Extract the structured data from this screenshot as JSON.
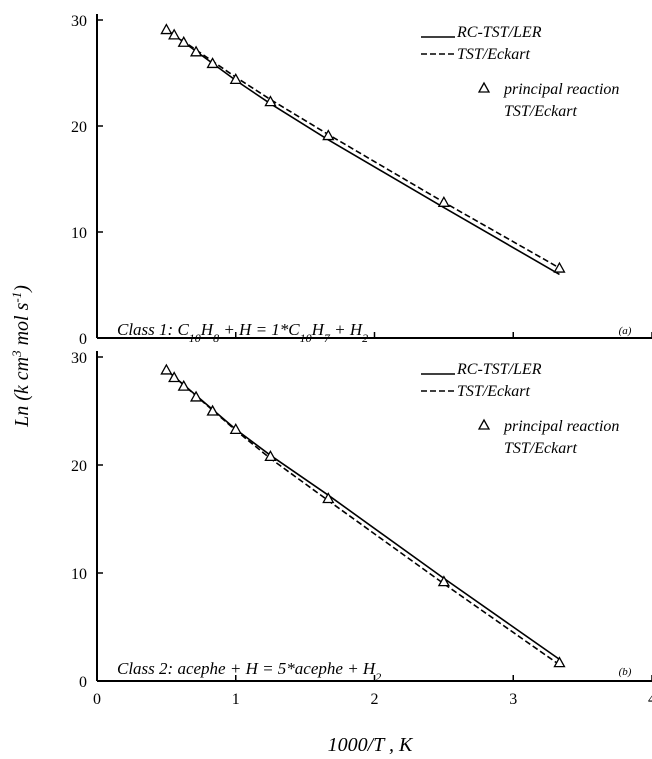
{
  "chart_data": [
    {
      "type": "line",
      "panel_label": "(a)",
      "title": "",
      "annotation_parts": [
        "Class 1: C",
        "10",
        "H",
        "8",
        " + H = 1*C",
        "10",
        "H",
        "7",
        " + H",
        "2"
      ],
      "xlabel": "1000/T , K",
      "ylabel_parts": [
        "Ln (k cm",
        "3",
        " mol s",
        "-1",
        ")"
      ],
      "xlim": [
        0,
        4
      ],
      "ylim": [
        0,
        30
      ],
      "xticks": [
        "0",
        "1",
        "2",
        "3",
        "4"
      ],
      "yticks": [
        "0",
        "10",
        "20",
        "30"
      ],
      "legend": {
        "position": "top-right"
      },
      "series": [
        {
          "name": "RC-TST/LER",
          "style": "solid",
          "x": [
            0.5,
            1.0,
            1.25,
            1.667,
            2.5,
            3.333
          ],
          "y": [
            29.1,
            24.3,
            22.1,
            18.7,
            12.3,
            6.0
          ]
        },
        {
          "name": "TST/Eckart",
          "style": "dashed",
          "x": [
            0.5,
            1.0,
            1.25,
            1.667,
            2.5,
            3.333
          ],
          "y": [
            29.1,
            24.6,
            22.5,
            19.2,
            12.8,
            6.6
          ]
        },
        {
          "name_lines": [
            "principal reaction",
            "TST/Eckart"
          ],
          "style": "triangle",
          "x": [
            0.5,
            0.556,
            0.625,
            0.714,
            0.833,
            1.0,
            1.25,
            1.667,
            2.5,
            3.333
          ],
          "y": [
            29.1,
            28.6,
            27.9,
            27.0,
            25.9,
            24.4,
            22.3,
            19.1,
            12.8,
            6.6
          ]
        }
      ]
    },
    {
      "type": "line",
      "panel_label": "(b)",
      "title": "",
      "annotation_parts": [
        "Class 2: acephe + H = 5*acephe + H",
        "2"
      ],
      "xlabel": "1000/T , K",
      "xlim": [
        0,
        4
      ],
      "ylim": [
        0,
        30
      ],
      "xticks": [
        "0",
        "1",
        "2",
        "3",
        "4"
      ],
      "yticks": [
        "0",
        "10",
        "20",
        "30"
      ],
      "legend": {
        "position": "top-right"
      },
      "series": [
        {
          "name": "RC-TST/LER",
          "style": "solid",
          "x": [
            0.5,
            1.0,
            1.25,
            1.667,
            2.5,
            3.333
          ],
          "y": [
            28.8,
            23.3,
            20.9,
            17.2,
            9.5,
            2.0
          ]
        },
        {
          "name": "TST/Eckart",
          "style": "dashed",
          "x": [
            0.5,
            1.0,
            1.25,
            1.667,
            2.5,
            3.333
          ],
          "y": [
            28.8,
            23.2,
            20.6,
            16.7,
            9.0,
            1.5
          ]
        },
        {
          "name_lines": [
            "principal reaction",
            "TST/Eckart"
          ],
          "style": "triangle",
          "x": [
            0.5,
            0.556,
            0.625,
            0.714,
            0.833,
            1.0,
            1.25,
            1.667,
            2.5,
            3.333
          ],
          "y": [
            28.8,
            28.1,
            27.3,
            26.3,
            25.0,
            23.3,
            20.8,
            16.9,
            9.2,
            1.7
          ]
        }
      ]
    }
  ]
}
